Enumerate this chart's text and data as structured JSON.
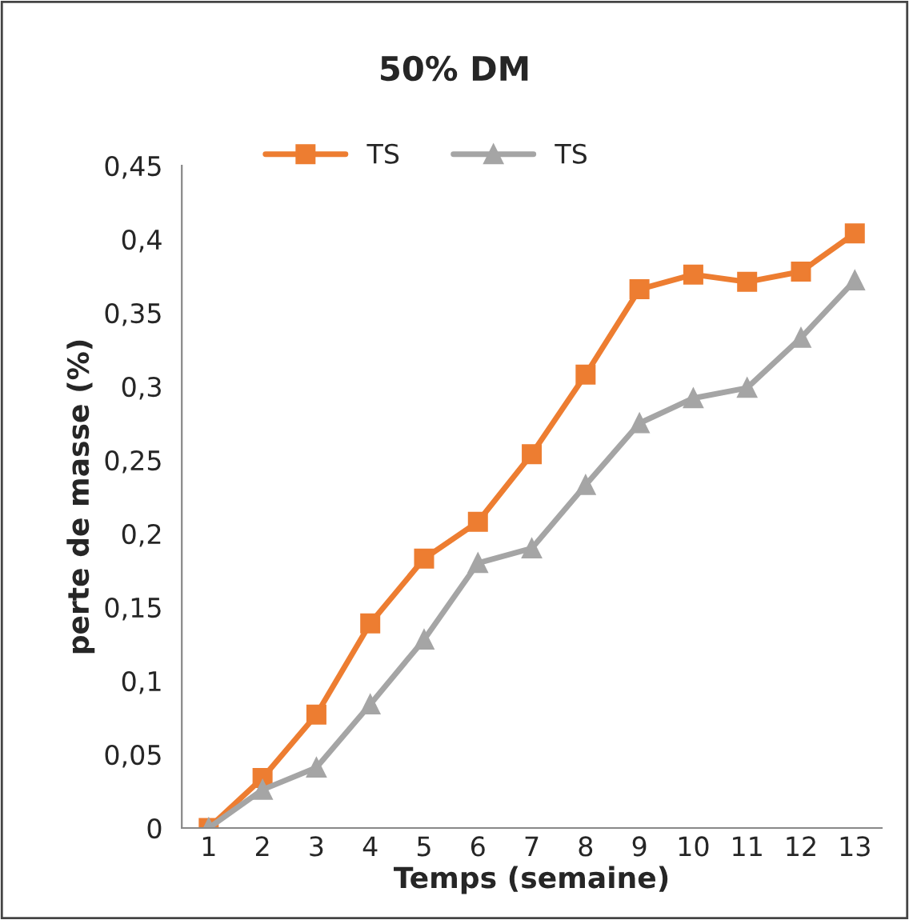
{
  "chart_data": {
    "type": "line",
    "title": "50% DM",
    "xlabel": "Temps (semaine)",
    "ylabel": "perte de masse (%)",
    "categories": [
      "1",
      "2",
      "3",
      "4",
      "5",
      "6",
      "7",
      "8",
      "9",
      "10",
      "11",
      "12",
      "13"
    ],
    "series": [
      {
        "name": "TS",
        "color": "#ed7d31",
        "marker": "square",
        "values": [
          0,
          0.034,
          0.077,
          0.139,
          0.183,
          0.208,
          0.254,
          0.308,
          0.366,
          0.376,
          0.371,
          0.378,
          0.404
        ]
      },
      {
        "name": "TS",
        "color": "#a5a5a5",
        "marker": "triangle",
        "values": [
          0,
          0.026,
          0.041,
          0.084,
          0.128,
          0.18,
          0.19,
          0.233,
          0.275,
          0.292,
          0.299,
          0.333,
          0.372
        ]
      }
    ],
    "ylim": [
      0,
      0.45
    ],
    "yticks": [
      {
        "value": 0,
        "label": "0"
      },
      {
        "value": 0.05,
        "label": "0,05"
      },
      {
        "value": 0.1,
        "label": "0,1"
      },
      {
        "value": 0.15,
        "label": "0,15"
      },
      {
        "value": 0.2,
        "label": "0,2"
      },
      {
        "value": 0.25,
        "label": "0,25"
      },
      {
        "value": 0.3,
        "label": "0,3"
      },
      {
        "value": 0.35,
        "label": "0,35"
      },
      {
        "value": 0.4,
        "label": "0,4"
      },
      {
        "value": 0.45,
        "label": "0,45"
      }
    ],
    "legend": "top",
    "grid": false,
    "line_style": "solid"
  }
}
